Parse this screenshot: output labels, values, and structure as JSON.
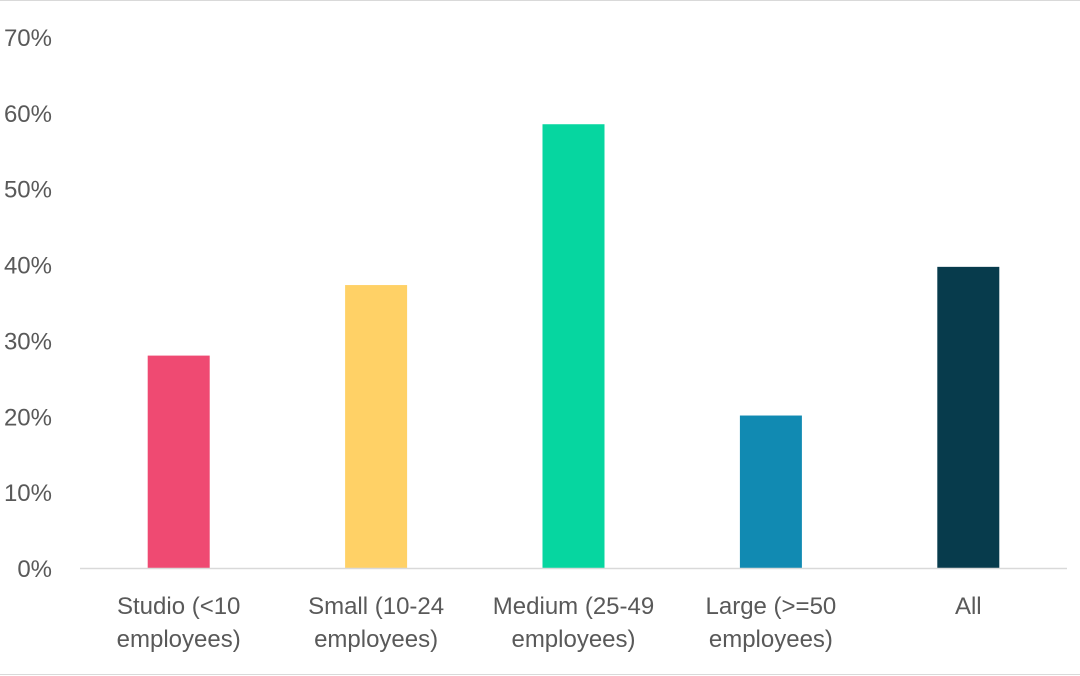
{
  "chart_data": {
    "type": "bar",
    "categories": [
      [
        "Studio (<10",
        "employees)"
      ],
      [
        "Small (10-24",
        "employees)"
      ],
      [
        "Medium (25-49",
        "employees)"
      ],
      [
        "Large (>=50",
        "employees)"
      ],
      [
        "All"
      ]
    ],
    "values": [
      28,
      37.3,
      58.5,
      20.1,
      39.7
    ],
    "colors": [
      "#ef4a72",
      "#ffd166",
      "#06d6a0",
      "#118ab2",
      "#073b4c"
    ],
    "ylim": [
      0,
      70
    ],
    "yticks": [
      0,
      10,
      20,
      30,
      40,
      50,
      60,
      70
    ],
    "ytick_format": "percent",
    "grid": false,
    "legend": "none",
    "title": "",
    "xlabel": "",
    "ylabel": ""
  }
}
